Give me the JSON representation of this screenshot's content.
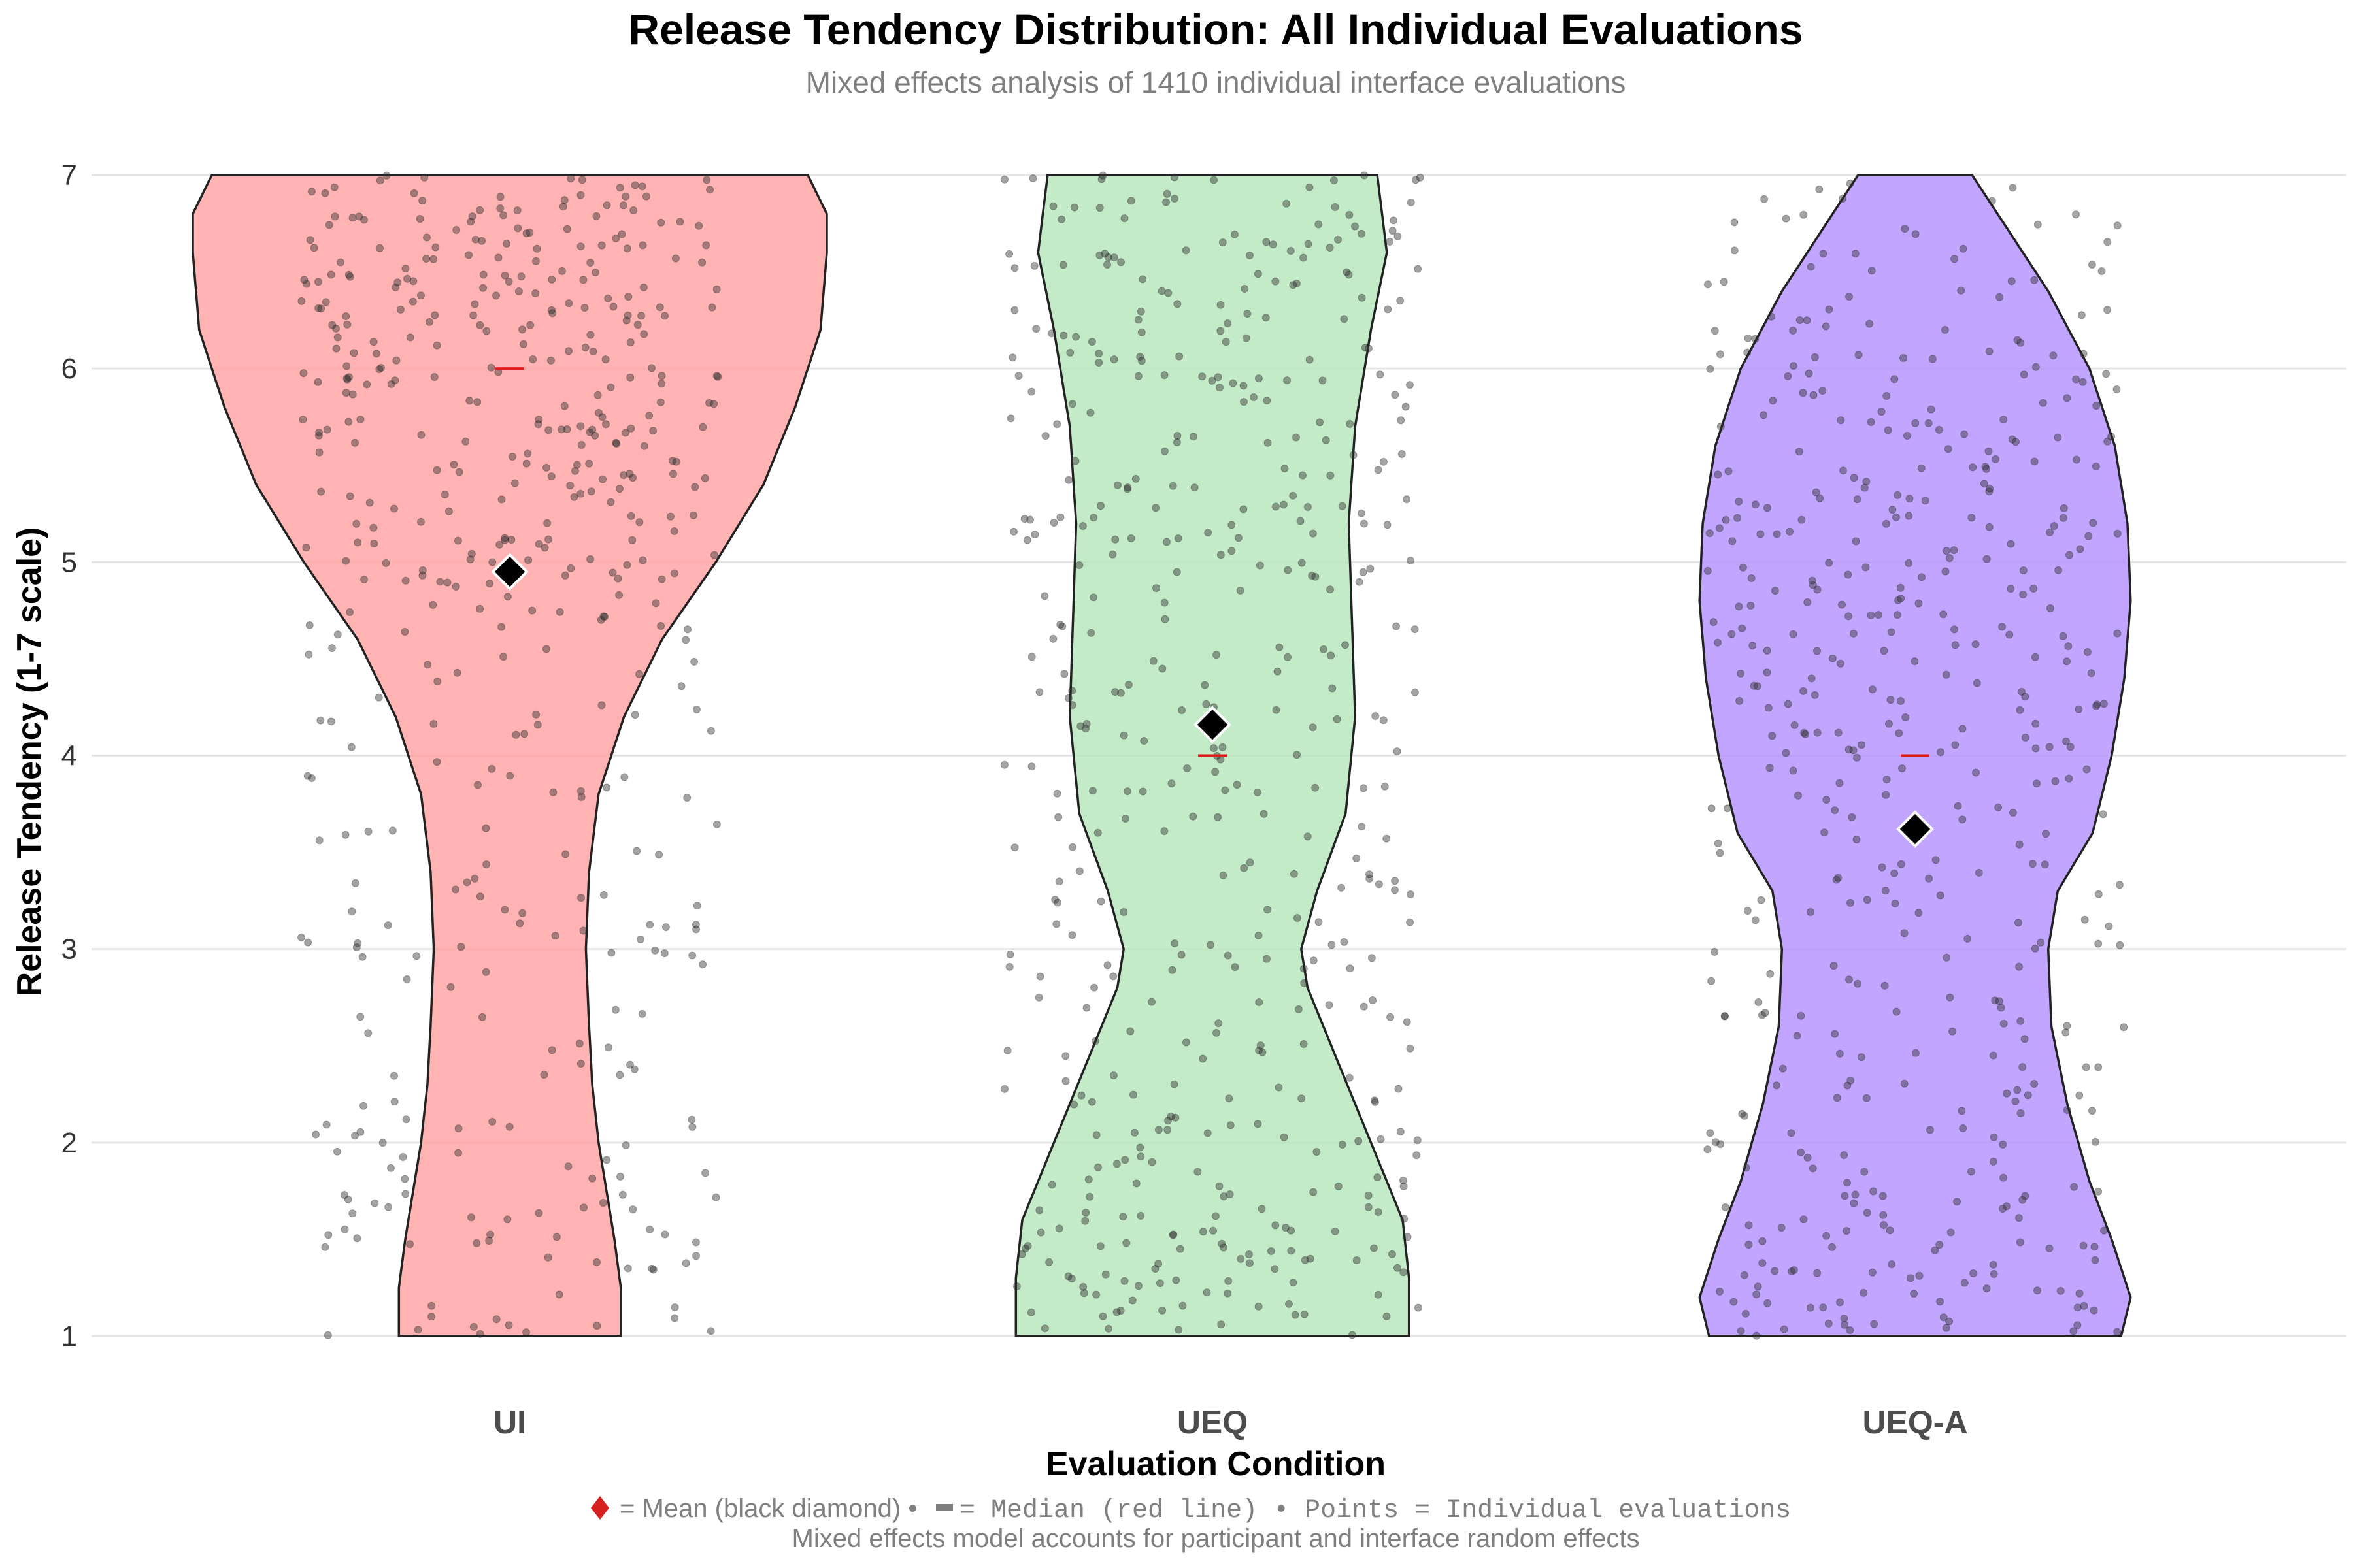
{
  "chart_data": {
    "type": "violin",
    "title": "Release Tendency Distribution: All Individual Evaluations",
    "subtitle": "Mixed effects analysis of 1410 individual interface evaluations",
    "xlabel": "Evaluation Condition",
    "ylabel": "Release Tendency (1-7 scale)",
    "categories": [
      "UI",
      "UEQ",
      "UEQ-A"
    ],
    "y_ticks": [
      "1",
      "2",
      "3",
      "4",
      "5",
      "6",
      "7"
    ],
    "ylim": [
      1,
      7
    ],
    "grid": "horizontal",
    "colors": {
      "UI": "#ff9e9e",
      "UEQ": "#b4e6b9",
      "UEQ-A": "#b08cff"
    },
    "series": [
      {
        "category": "UI",
        "mean": 4.95,
        "median": 6,
        "density": [
          [
            1,
            0.35
          ],
          [
            1.25,
            0.35
          ],
          [
            1.5,
            0.33
          ],
          [
            1.8,
            0.3
          ],
          [
            2.0,
            0.28
          ],
          [
            2.3,
            0.26
          ],
          [
            2.6,
            0.25
          ],
          [
            3.0,
            0.24
          ],
          [
            3.4,
            0.25
          ],
          [
            3.8,
            0.28
          ],
          [
            4.2,
            0.36
          ],
          [
            4.6,
            0.48
          ],
          [
            5.0,
            0.65
          ],
          [
            5.4,
            0.8
          ],
          [
            5.8,
            0.9
          ],
          [
            6.2,
            0.98
          ],
          [
            6.6,
            1.0
          ],
          [
            6.8,
            1.0
          ],
          [
            7.0,
            0.94
          ]
        ]
      },
      {
        "category": "UEQ",
        "mean": 4.16,
        "median": 4,
        "density": [
          [
            1,
            0.62
          ],
          [
            1.3,
            0.62
          ],
          [
            1.6,
            0.6
          ],
          [
            2.0,
            0.5
          ],
          [
            2.4,
            0.4
          ],
          [
            2.8,
            0.3
          ],
          [
            3.0,
            0.28
          ],
          [
            3.3,
            0.33
          ],
          [
            3.7,
            0.42
          ],
          [
            4.2,
            0.45
          ],
          [
            4.7,
            0.44
          ],
          [
            5.2,
            0.43
          ],
          [
            5.7,
            0.45
          ],
          [
            6.2,
            0.5
          ],
          [
            6.6,
            0.55
          ],
          [
            7.0,
            0.52
          ]
        ]
      },
      {
        "category": "UEQ-A",
        "mean": 3.62,
        "median": 4,
        "density": [
          [
            1,
            0.65
          ],
          [
            1.2,
            0.68
          ],
          [
            1.5,
            0.62
          ],
          [
            1.8,
            0.55
          ],
          [
            2.2,
            0.48
          ],
          [
            2.6,
            0.43
          ],
          [
            3.0,
            0.42
          ],
          [
            3.3,
            0.45
          ],
          [
            3.6,
            0.56
          ],
          [
            4.0,
            0.62
          ],
          [
            4.4,
            0.66
          ],
          [
            4.8,
            0.68
          ],
          [
            5.2,
            0.67
          ],
          [
            5.6,
            0.63
          ],
          [
            6.0,
            0.55
          ],
          [
            6.4,
            0.42
          ],
          [
            6.8,
            0.26
          ],
          [
            7.0,
            0.18
          ]
        ]
      }
    ],
    "points_per_group": 470
  },
  "caption": {
    "line1_prefix": "= Mean (black diamond) •",
    "line1_mono": "= Median (red line) • Points = Individual evaluations",
    "line2": "Mixed effects model accounts for participant and interface random effects"
  }
}
